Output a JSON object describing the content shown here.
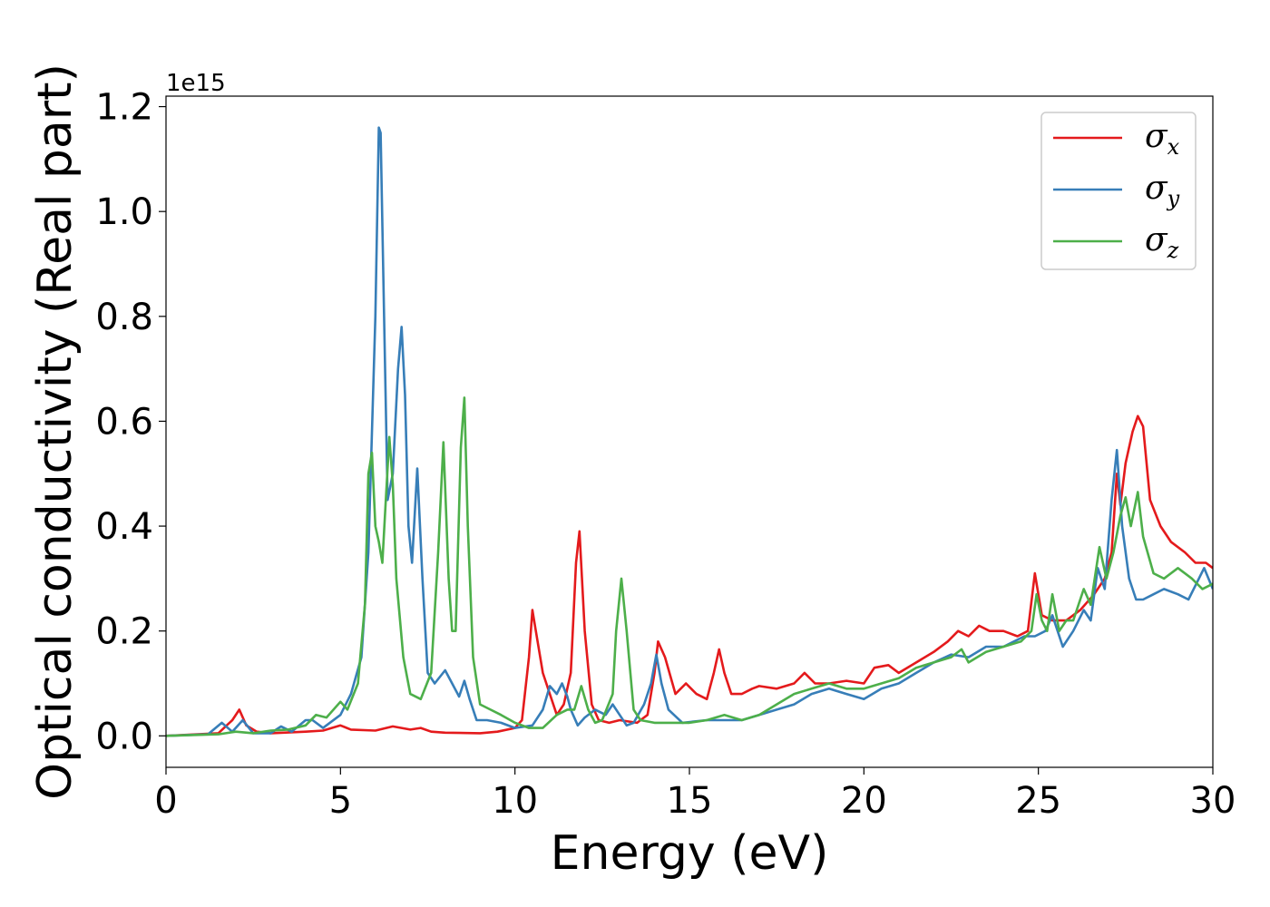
{
  "chart_data": {
    "type": "line",
    "xlabel": "Energy (eV)",
    "ylabel": "Optical conductivity (Real part)",
    "y_offset_label": "1e15",
    "xlim": [
      0,
      30
    ],
    "ylim": [
      -0.06,
      1.22
    ],
    "xticks": [
      0,
      5,
      10,
      15,
      20,
      25,
      30
    ],
    "xtick_labels": [
      "0",
      "5",
      "10",
      "15",
      "20",
      "25",
      "30"
    ],
    "yticks": [
      0.0,
      0.2,
      0.4,
      0.6,
      0.8,
      1.0,
      1.2
    ],
    "ytick_labels": [
      "0.0",
      "0.2",
      "0.4",
      "0.6",
      "0.8",
      "1.0",
      "1.2"
    ],
    "grid": false,
    "legend_position": "top-right",
    "series": [
      {
        "name": "σx",
        "symbol": "σ",
        "subscript": "x",
        "color": "#e41a1c",
        "x": [
          0,
          1.5,
          1.9,
          2.1,
          2.3,
          2.6,
          3.0,
          4.0,
          4.5,
          5.0,
          5.3,
          6.0,
          6.5,
          7.0,
          7.3,
          7.6,
          8.0,
          9.0,
          9.5,
          10.0,
          10.2,
          10.4,
          10.5,
          10.6,
          10.8,
          11.0,
          11.2,
          11.4,
          11.6,
          11.75,
          11.85,
          12.0,
          12.2,
          12.4,
          12.7,
          13.0,
          13.5,
          13.8,
          14.0,
          14.1,
          14.3,
          14.6,
          14.9,
          15.2,
          15.5,
          15.7,
          15.85,
          16.0,
          16.2,
          16.5,
          16.8,
          17.0,
          17.5,
          18.0,
          18.3,
          18.6,
          19.0,
          19.5,
          20.0,
          20.3,
          20.7,
          21.0,
          21.5,
          22.0,
          22.4,
          22.7,
          23.0,
          23.3,
          23.6,
          24.0,
          24.4,
          24.7,
          24.9,
          25.1,
          25.4,
          25.8,
          26.2,
          26.6,
          26.9,
          27.1,
          27.25,
          27.35,
          27.5,
          27.7,
          27.85,
          28.0,
          28.2,
          28.5,
          28.8,
          29.2,
          29.5,
          29.8,
          30.0
        ],
        "y": [
          0.0,
          0.005,
          0.03,
          0.05,
          0.02,
          0.008,
          0.005,
          0.008,
          0.01,
          0.02,
          0.012,
          0.01,
          0.018,
          0.012,
          0.015,
          0.008,
          0.006,
          0.005,
          0.008,
          0.015,
          0.03,
          0.15,
          0.24,
          0.2,
          0.12,
          0.08,
          0.04,
          0.06,
          0.12,
          0.33,
          0.39,
          0.2,
          0.06,
          0.03,
          0.025,
          0.03,
          0.025,
          0.04,
          0.12,
          0.18,
          0.15,
          0.08,
          0.1,
          0.08,
          0.07,
          0.12,
          0.165,
          0.12,
          0.08,
          0.08,
          0.09,
          0.095,
          0.09,
          0.1,
          0.12,
          0.1,
          0.1,
          0.105,
          0.1,
          0.13,
          0.135,
          0.12,
          0.14,
          0.16,
          0.18,
          0.2,
          0.19,
          0.21,
          0.2,
          0.2,
          0.19,
          0.2,
          0.31,
          0.23,
          0.22,
          0.22,
          0.24,
          0.27,
          0.3,
          0.35,
          0.5,
          0.44,
          0.52,
          0.58,
          0.61,
          0.59,
          0.45,
          0.4,
          0.37,
          0.35,
          0.33,
          0.33,
          0.32
        ]
      },
      {
        "name": "σy",
        "symbol": "σ",
        "subscript": "y",
        "color": "#377eb8",
        "x": [
          0,
          1.2,
          1.6,
          1.9,
          2.2,
          2.5,
          3.0,
          3.3,
          3.6,
          4.0,
          4.2,
          4.5,
          5.0,
          5.3,
          5.6,
          5.8,
          6.0,
          6.1,
          6.15,
          6.25,
          6.35,
          6.5,
          6.65,
          6.75,
          6.85,
          6.95,
          7.05,
          7.2,
          7.35,
          7.5,
          7.7,
          8.0,
          8.2,
          8.4,
          8.55,
          8.7,
          8.9,
          9.2,
          9.6,
          10.0,
          10.5,
          10.8,
          11.0,
          11.2,
          11.35,
          11.5,
          11.6,
          11.8,
          12.0,
          12.3,
          12.6,
          12.8,
          13.0,
          13.2,
          13.4,
          13.7,
          13.9,
          14.05,
          14.2,
          14.4,
          14.8,
          15.5,
          16.0,
          16.5,
          17.0,
          17.5,
          18.0,
          18.5,
          19.0,
          19.5,
          20.0,
          20.5,
          21.0,
          21.5,
          22.0,
          22.5,
          23.0,
          23.5,
          24.0,
          24.3,
          24.6,
          24.9,
          25.2,
          25.4,
          25.7,
          26.0,
          26.3,
          26.5,
          26.7,
          26.9,
          27.1,
          27.25,
          27.4,
          27.6,
          27.8,
          28.0,
          28.3,
          28.6,
          29.0,
          29.3,
          29.6,
          29.75,
          30.0
        ],
        "y": [
          0.0,
          0.003,
          0.025,
          0.008,
          0.03,
          0.005,
          0.005,
          0.018,
          0.008,
          0.03,
          0.03,
          0.015,
          0.04,
          0.08,
          0.15,
          0.35,
          0.8,
          1.16,
          1.15,
          0.8,
          0.45,
          0.5,
          0.7,
          0.78,
          0.65,
          0.4,
          0.33,
          0.51,
          0.3,
          0.12,
          0.1,
          0.125,
          0.1,
          0.075,
          0.105,
          0.07,
          0.03,
          0.03,
          0.025,
          0.015,
          0.02,
          0.05,
          0.095,
          0.08,
          0.1,
          0.075,
          0.05,
          0.02,
          0.035,
          0.05,
          0.04,
          0.06,
          0.04,
          0.02,
          0.025,
          0.06,
          0.1,
          0.155,
          0.1,
          0.05,
          0.025,
          0.03,
          0.03,
          0.03,
          0.04,
          0.05,
          0.06,
          0.08,
          0.09,
          0.08,
          0.07,
          0.09,
          0.1,
          0.12,
          0.14,
          0.155,
          0.15,
          0.17,
          0.17,
          0.18,
          0.19,
          0.19,
          0.2,
          0.23,
          0.17,
          0.2,
          0.24,
          0.22,
          0.32,
          0.28,
          0.45,
          0.545,
          0.4,
          0.3,
          0.26,
          0.26,
          0.27,
          0.28,
          0.27,
          0.26,
          0.3,
          0.32,
          0.28
        ]
      },
      {
        "name": "σz",
        "symbol": "σ",
        "subscript": "z",
        "color": "#4daf4a",
        "x": [
          0,
          1.5,
          2.0,
          2.5,
          3.0,
          3.5,
          4.0,
          4.3,
          4.6,
          5.0,
          5.2,
          5.5,
          5.7,
          5.8,
          5.9,
          6.0,
          6.1,
          6.2,
          6.3,
          6.4,
          6.5,
          6.6,
          6.8,
          7.0,
          7.3,
          7.6,
          7.8,
          7.95,
          8.1,
          8.2,
          8.3,
          8.45,
          8.55,
          8.65,
          8.8,
          9.0,
          9.3,
          9.6,
          10.0,
          10.4,
          10.8,
          11.2,
          11.5,
          11.7,
          11.9,
          12.1,
          12.3,
          12.5,
          12.8,
          12.9,
          13.05,
          13.2,
          13.4,
          13.6,
          14.0,
          14.5,
          15.0,
          15.5,
          16.0,
          16.5,
          17.0,
          17.5,
          18.0,
          18.5,
          19.0,
          19.5,
          20.0,
          20.5,
          21.0,
          21.5,
          22.0,
          22.5,
          22.8,
          23.0,
          23.5,
          24.0,
          24.5,
          24.8,
          24.95,
          25.1,
          25.25,
          25.4,
          25.6,
          25.8,
          26.0,
          26.3,
          26.5,
          26.75,
          26.95,
          27.15,
          27.35,
          27.5,
          27.65,
          27.85,
          28.0,
          28.3,
          28.6,
          29.0,
          29.4,
          29.7,
          30.0
        ],
        "y": [
          0.0,
          0.003,
          0.008,
          0.005,
          0.01,
          0.012,
          0.02,
          0.04,
          0.035,
          0.065,
          0.05,
          0.1,
          0.25,
          0.5,
          0.54,
          0.4,
          0.37,
          0.33,
          0.45,
          0.57,
          0.48,
          0.3,
          0.15,
          0.08,
          0.07,
          0.12,
          0.35,
          0.56,
          0.3,
          0.2,
          0.2,
          0.55,
          0.645,
          0.4,
          0.15,
          0.06,
          0.05,
          0.04,
          0.025,
          0.015,
          0.015,
          0.04,
          0.05,
          0.05,
          0.095,
          0.05,
          0.025,
          0.03,
          0.08,
          0.2,
          0.3,
          0.2,
          0.05,
          0.03,
          0.025,
          0.025,
          0.025,
          0.03,
          0.04,
          0.03,
          0.04,
          0.06,
          0.08,
          0.09,
          0.1,
          0.09,
          0.09,
          0.1,
          0.11,
          0.13,
          0.14,
          0.15,
          0.165,
          0.14,
          0.16,
          0.17,
          0.18,
          0.2,
          0.27,
          0.22,
          0.2,
          0.27,
          0.2,
          0.22,
          0.22,
          0.28,
          0.25,
          0.36,
          0.3,
          0.35,
          0.42,
          0.455,
          0.4,
          0.465,
          0.38,
          0.31,
          0.3,
          0.32,
          0.3,
          0.28,
          0.29
        ]
      }
    ]
  }
}
